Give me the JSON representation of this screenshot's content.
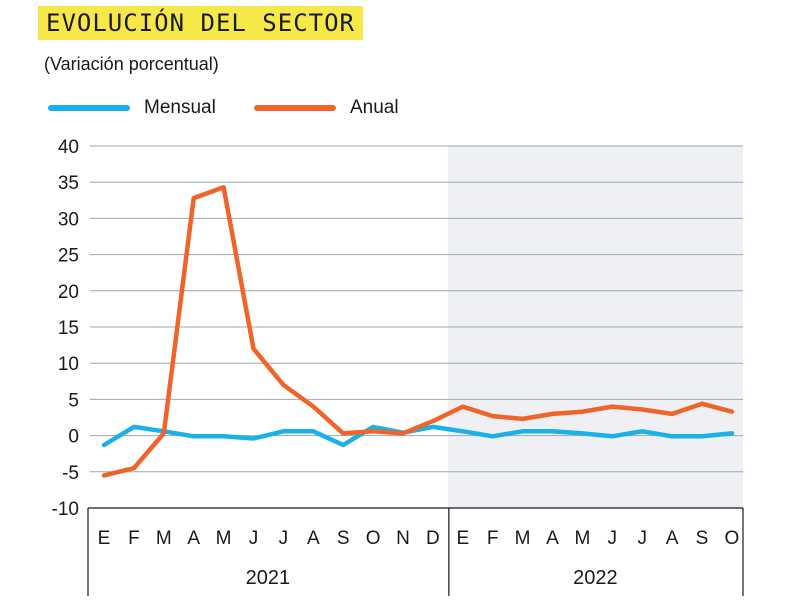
{
  "title": "EVOLUCIÓN DEL SECTOR",
  "subtitle": "(Variación porcentual)",
  "chart_data": {
    "type": "line",
    "title": "EVOLUCIÓN DEL SECTOR",
    "subtitle": "(Variación porcentual)",
    "xlabel": "",
    "ylabel": "",
    "ylim": [
      -10,
      40
    ],
    "yticks": [
      40,
      35,
      30,
      25,
      20,
      15,
      10,
      5,
      0,
      -5,
      -10
    ],
    "grid": true,
    "legend": "top-left",
    "categories": [
      "E",
      "F",
      "M",
      "A",
      "M",
      "J",
      "J",
      "A",
      "S",
      "O",
      "N",
      "D",
      "E",
      "F",
      "M",
      "A",
      "M",
      "J",
      "J",
      "A",
      "S",
      "O"
    ],
    "year_groups": [
      {
        "label": "2021",
        "start": 0,
        "end": 11
      },
      {
        "label": "2022",
        "start": 12,
        "end": 21
      }
    ],
    "highlight_range": [
      12,
      21
    ],
    "series": [
      {
        "name": "Mensual",
        "color": "#1ab0e8",
        "values": [
          -1.3,
          1.2,
          0.6,
          -0.1,
          -0.1,
          -0.4,
          0.6,
          0.6,
          -1.3,
          1.2,
          0.4,
          1.2,
          0.6,
          -0.1,
          0.6,
          0.6,
          0.3,
          -0.1,
          0.6,
          -0.1,
          -0.1,
          0.3
        ]
      },
      {
        "name": "Anual",
        "color": "#f0642a",
        "values": [
          -5.5,
          -4.5,
          0.3,
          32.8,
          34.3,
          12.0,
          7.0,
          4.0,
          0.3,
          0.6,
          0.3,
          2.0,
          4.0,
          2.7,
          2.3,
          3.0,
          3.3,
          4.0,
          3.6,
          3.0,
          4.4,
          3.3
        ]
      }
    ]
  }
}
